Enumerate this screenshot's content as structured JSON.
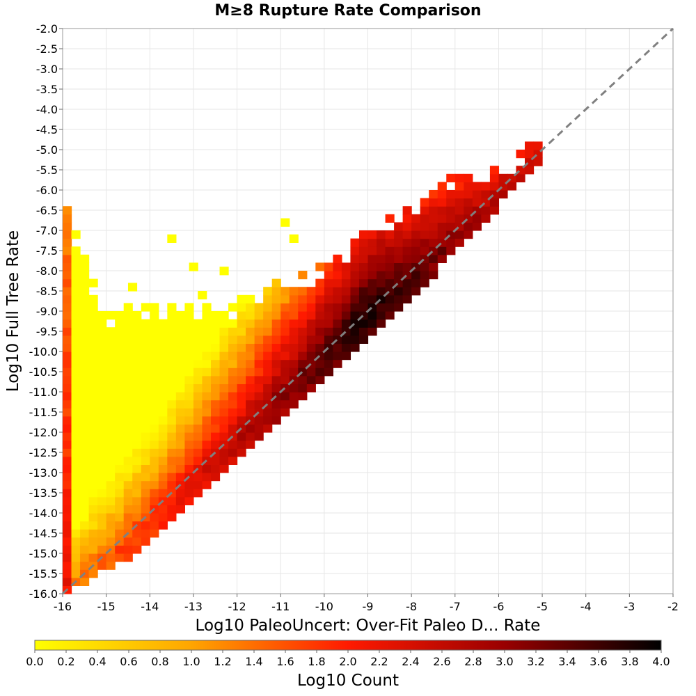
{
  "chart_data": {
    "type": "heatmap",
    "title": "M≥8 Rupture Rate Comparison",
    "xlabel": "Log10 PaleoUncert: Over-Fit Paleo D... Rate",
    "ylabel": "Log10 Full Tree Rate",
    "xlim": [
      -16,
      -2
    ],
    "ylim": [
      -16,
      -2
    ],
    "x_ticks": [
      "-16",
      "-15",
      "-14",
      "-13",
      "-12",
      "-11",
      "-10",
      "-9",
      "-8",
      "-7",
      "-6",
      "-5",
      "-4",
      "-3",
      "-2"
    ],
    "y_ticks": [
      "-2.0",
      "-2.5",
      "-3.0",
      "-3.5",
      "-4.0",
      "-4.5",
      "-5.0",
      "-5.5",
      "-6.0",
      "-6.5",
      "-7.0",
      "-7.5",
      "-8.0",
      "-8.5",
      "-9.0",
      "-9.5",
      "-10.0",
      "-10.5",
      "-11.0",
      "-11.5",
      "-12.0",
      "-12.5",
      "-13.0",
      "-13.5",
      "-14.0",
      "-14.5",
      "-15.0",
      "-15.5",
      "-16.0"
    ],
    "bin_width_log10": 0.2,
    "grid": true,
    "reference_line": "y = x (dashed gray)",
    "colorbar": {
      "label": "Log10 Count",
      "min": 0.0,
      "max": 4.0,
      "ticks": [
        "0.0",
        "0.2",
        "0.4",
        "0.6",
        "0.8",
        "1.0",
        "1.2",
        "1.4",
        "1.6",
        "1.8",
        "2.0",
        "2.2",
        "2.4",
        "2.6",
        "2.8",
        "3.0",
        "3.2",
        "3.4",
        "3.6",
        "3.8",
        "4.0"
      ],
      "colors": [
        "#ffff00",
        "#ffa500",
        "#ff1a00",
        "#990000",
        "#000000"
      ],
      "placement": "bottom"
    },
    "density_summary": {
      "ridge_points": [
        [
          -16,
          -16
        ],
        [
          -14,
          -14.3
        ],
        [
          -12,
          -12.2
        ],
        [
          -10,
          -10.1
        ],
        [
          -9,
          -9.0
        ],
        [
          -8,
          -8.2
        ],
        [
          -7,
          -7.2
        ],
        [
          -6,
          -6.2
        ],
        [
          -5,
          -5.0
        ]
      ],
      "lower_edge_points": [
        [
          -16,
          -16
        ],
        [
          -14,
          -14.8
        ],
        [
          -12,
          -12.6
        ],
        [
          -10,
          -10.7
        ],
        [
          -9,
          -9.6
        ],
        [
          -8,
          -8.6
        ],
        [
          -7,
          -7.6
        ],
        [
          -6,
          -6.4
        ],
        [
          -5,
          -5.2
        ]
      ],
      "upper_edge_points": [
        [
          -15.9,
          -6.5
        ],
        [
          -15,
          -9.0
        ],
        [
          -14,
          -8.8
        ],
        [
          -12,
          -8.7
        ],
        [
          -11,
          -8.2
        ],
        [
          -10,
          -7.8
        ],
        [
          -9,
          -7.0
        ],
        [
          -8,
          -6.4
        ],
        [
          -7,
          -5.6
        ],
        [
          -6,
          -5.4
        ],
        [
          -5,
          -4.4
        ]
      ],
      "left_column_x": -16,
      "left_column_count_log10": 2.2,
      "peak_count_log10": 3.9
    },
    "scattered_outlier_bins": [
      [
        -13.6,
        -7.3
      ],
      [
        -11.0,
        -6.9
      ],
      [
        -10.8,
        -7.3
      ],
      [
        -13.1,
        -8.0
      ],
      [
        -12.4,
        -8.1
      ],
      [
        -14.5,
        -8.5
      ],
      [
        -12.9,
        -8.7
      ]
    ]
  }
}
